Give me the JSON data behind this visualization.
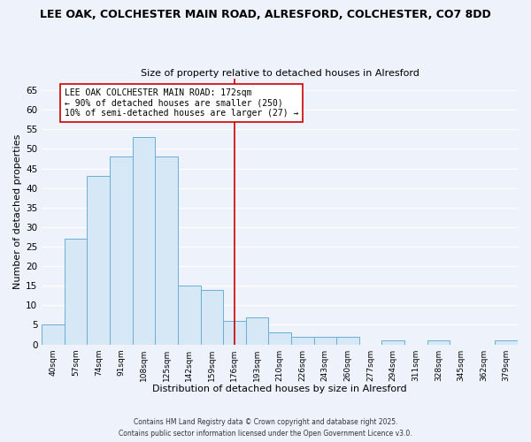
{
  "title_line1": "LEE OAK, COLCHESTER MAIN ROAD, ALRESFORD, COLCHESTER, CO7 8DD",
  "title_line2": "Size of property relative to detached houses in Alresford",
  "xlabel": "Distribution of detached houses by size in Alresford",
  "ylabel": "Number of detached properties",
  "bar_labels": [
    "40sqm",
    "57sqm",
    "74sqm",
    "91sqm",
    "108sqm",
    "125sqm",
    "142sqm",
    "159sqm",
    "176sqm",
    "193sqm",
    "210sqm",
    "226sqm",
    "243sqm",
    "260sqm",
    "277sqm",
    "294sqm",
    "311sqm",
    "328sqm",
    "345sqm",
    "362sqm",
    "379sqm"
  ],
  "bar_values": [
    5,
    27,
    43,
    48,
    53,
    48,
    15,
    14,
    6,
    7,
    3,
    2,
    2,
    2,
    0,
    1,
    0,
    1,
    0,
    0,
    1
  ],
  "bar_color": "#d6e8f5",
  "bar_edge_color": "#6baed6",
  "vline_x_index": 8,
  "vline_color": "#cc0000",
  "annotation_text": "LEE OAK COLCHESTER MAIN ROAD: 172sqm\n← 90% of detached houses are smaller (250)\n10% of semi-detached houses are larger (27) →",
  "ylim": [
    0,
    68
  ],
  "yticks": [
    0,
    5,
    10,
    15,
    20,
    25,
    30,
    35,
    40,
    45,
    50,
    55,
    60,
    65
  ],
  "footnote_line1": "Contains HM Land Registry data © Crown copyright and database right 2025.",
  "footnote_line2": "Contains public sector information licensed under the Open Government Licence v3.0.",
  "background_color": "#eef2fb",
  "grid_color": "#ffffff",
  "annotation_box_edge_color": "#cc0000",
  "annotation_fontsize": 7.0,
  "title1_fontsize": 9.0,
  "title2_fontsize": 8.0,
  "xlabel_fontsize": 8.0,
  "ylabel_fontsize": 8.0,
  "footnote_fontsize": 5.5
}
